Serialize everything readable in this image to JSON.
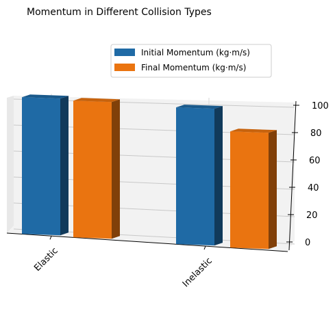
{
  "chart_data": {
    "type": "bar",
    "title": "Momentum in Different Collision Types",
    "categories": [
      "Elastic",
      "Inelastic"
    ],
    "series": [
      {
        "name": "Initial Momentum (kg·m/s)",
        "values": [
          100,
          100
        ],
        "color": "#1f6aa5"
      },
      {
        "name": "Final Momentum (kg·m/s)",
        "values": [
          100,
          85
        ],
        "color": "#ea7410"
      }
    ],
    "zlim": [
      0,
      100
    ],
    "z_ticks": [
      0,
      20,
      40,
      60,
      80,
      100
    ],
    "legend": "top-center",
    "grid": true,
    "projection": "3d"
  }
}
